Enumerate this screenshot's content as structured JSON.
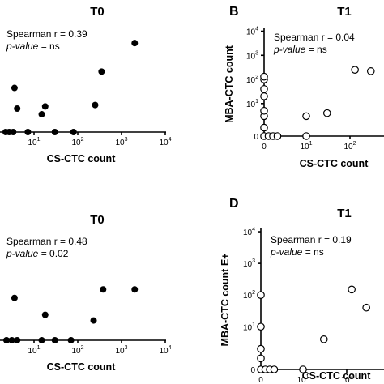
{
  "chart_data": [
    {
      "panel": "",
      "type": "scatter",
      "title": "T0",
      "xlabel": "CS-CTC count",
      "ylabel": "",
      "x_scale": "log",
      "x_ticks": [
        "10",
        "10",
        "10",
        "10"
      ],
      "x_tick_exponents": [
        "1",
        "2",
        "3",
        "4"
      ],
      "y_ticks": [],
      "annotation_line1": "Spearman r = 0.39",
      "annotation_line2_label": "p-value",
      "annotation_line2_value": " = ns",
      "marker": "filled",
      "points": [
        {
          "x": 0,
          "y": 0
        },
        {
          "x": 1,
          "y": 0
        },
        {
          "x": 2.5,
          "y": 0
        },
        {
          "x": 8,
          "y": 0
        },
        {
          "x": 30,
          "y": 0
        },
        {
          "x": 80,
          "y": 0
        },
        {
          "x": 3,
          "y": 62
        },
        {
          "x": 4,
          "y": 33
        },
        {
          "x": 15,
          "y": 25
        },
        {
          "x": 18,
          "y": 36
        },
        {
          "x": 250,
          "y": 38
        },
        {
          "x": 350,
          "y": 85
        },
        {
          "x": 2000,
          "y": 125
        }
      ]
    },
    {
      "panel": "B",
      "type": "scatter",
      "title": "T1",
      "xlabel": "CS-CTC count",
      "ylabel": "MBA-CTC count",
      "x_scale": "log",
      "y_scale": "log",
      "x_ticks": [
        "0",
        "10",
        "10"
      ],
      "x_tick_exponents": [
        "",
        "1",
        "2"
      ],
      "y_ticks": [
        "0",
        "10",
        "10",
        "10",
        "10"
      ],
      "y_tick_exponents": [
        "",
        "1",
        "2",
        "3",
        "4"
      ],
      "annotation_line1": "Spearman r = 0.04",
      "annotation_line2_label": "p-value",
      "annotation_line2_value": " = ns",
      "marker": "open",
      "points": [
        {
          "x": 0,
          "y": 0
        },
        {
          "x": 0,
          "y": 1
        },
        {
          "x": 0,
          "y": 3
        },
        {
          "x": 0,
          "y": 5
        },
        {
          "x": 0,
          "y": 20
        },
        {
          "x": 0,
          "y": 40
        },
        {
          "x": 0,
          "y": 100
        },
        {
          "x": 0,
          "y": 130
        },
        {
          "x": 1,
          "y": 0
        },
        {
          "x": 2,
          "y": 0
        },
        {
          "x": 3,
          "y": 0
        },
        {
          "x": 10,
          "y": 0
        },
        {
          "x": 10,
          "y": 3
        },
        {
          "x": 30,
          "y": 4
        },
        {
          "x": 130,
          "y": 250
        },
        {
          "x": 300,
          "y": 220
        }
      ]
    },
    {
      "panel": "",
      "type": "scatter",
      "title": "T0",
      "xlabel": "CS-CTC count",
      "ylabel": "",
      "x_scale": "log",
      "x_ticks": [
        "10",
        "10",
        "10",
        "10"
      ],
      "x_tick_exponents": [
        "1",
        "2",
        "3",
        "4"
      ],
      "y_ticks": [],
      "annotation_line1": "Spearman r = 0.48",
      "annotation_line2_label": "p-value",
      "annotation_line2_value": " = 0.02",
      "marker": "filled",
      "points": [
        {
          "x": 0,
          "y": 0
        },
        {
          "x": 2,
          "y": 0
        },
        {
          "x": 4,
          "y": 0
        },
        {
          "x": 15,
          "y": 0
        },
        {
          "x": 30,
          "y": 0
        },
        {
          "x": 70,
          "y": 0
        },
        {
          "x": 3,
          "y": 60
        },
        {
          "x": 18,
          "y": 36
        },
        {
          "x": 230,
          "y": 28
        },
        {
          "x": 380,
          "y": 72
        },
        {
          "x": 2000,
          "y": 72
        }
      ]
    },
    {
      "panel": "D",
      "type": "scatter",
      "title": "T1",
      "xlabel": "CS-CTC count",
      "ylabel": "MBA-CTC count E+",
      "x_scale": "log",
      "y_scale": "log",
      "x_ticks": [
        "0",
        "10",
        "10"
      ],
      "x_tick_exponents": [
        "",
        "1",
        "2"
      ],
      "y_ticks": [
        "0",
        "10",
        "10",
        "10",
        "10"
      ],
      "y_tick_exponents": [
        "",
        "1",
        "2",
        "3",
        "4"
      ],
      "annotation_line1": "Spearman r = 0.19",
      "annotation_line2_label": "p-value",
      "annotation_line2_value": " = ns",
      "marker": "open",
      "points": [
        {
          "x": 0,
          "y": 0
        },
        {
          "x": 0,
          "y": 1
        },
        {
          "x": 0,
          "y": 2
        },
        {
          "x": 0,
          "y": 10
        },
        {
          "x": 0,
          "y": 100
        },
        {
          "x": 1,
          "y": 0
        },
        {
          "x": 2,
          "y": 0
        },
        {
          "x": 3,
          "y": 0
        },
        {
          "x": 10,
          "y": 0
        },
        {
          "x": 30,
          "y": 4
        },
        {
          "x": 130,
          "y": 150
        },
        {
          "x": 280,
          "y": 40
        }
      ]
    }
  ]
}
